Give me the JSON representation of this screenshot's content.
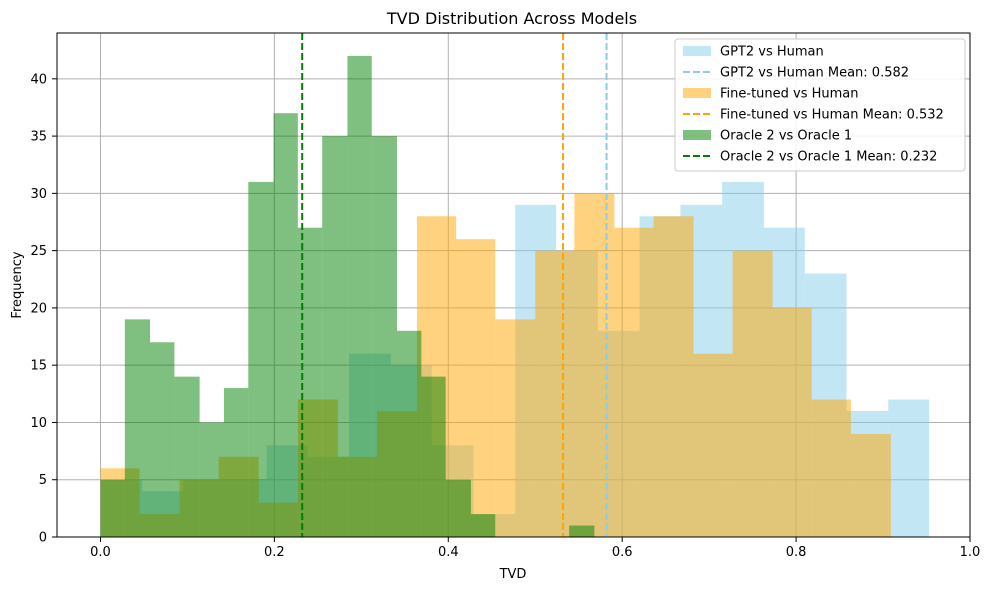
{
  "chart_data": {
    "type": "histogram",
    "title": "TVD Distribution Across Models",
    "xlabel": "TVD",
    "ylabel": "Frequency",
    "xlim": [
      -0.05,
      1.0
    ],
    "ylim": [
      0,
      44
    ],
    "xticks": [
      0.0,
      0.2,
      0.4,
      0.6,
      0.8,
      1.0
    ],
    "xtick_labels": [
      "0.0",
      "0.2",
      "0.4",
      "0.6",
      "0.8",
      "1.0"
    ],
    "yticks": [
      0,
      5,
      10,
      15,
      20,
      25,
      30,
      35,
      40
    ],
    "ytick_labels": [
      "0",
      "5",
      "10",
      "15",
      "20",
      "25",
      "30",
      "35",
      "40"
    ],
    "grid": true,
    "legend_position": "top-right",
    "series": [
      {
        "name": "GPT2 vs Human",
        "color": "#87ceeb",
        "opacity": 0.5,
        "bins": [
          {
            "x0": 0.0,
            "x1": 0.048,
            "count": 5
          },
          {
            "x0": 0.048,
            "x1": 0.095,
            "count": 4
          },
          {
            "x0": 0.095,
            "x1": 0.143,
            "count": 5
          },
          {
            "x0": 0.143,
            "x1": 0.191,
            "count": 5
          },
          {
            "x0": 0.191,
            "x1": 0.238,
            "count": 8
          },
          {
            "x0": 0.238,
            "x1": 0.286,
            "count": 7
          },
          {
            "x0": 0.286,
            "x1": 0.334,
            "count": 16
          },
          {
            "x0": 0.334,
            "x1": 0.381,
            "count": 15
          },
          {
            "x0": 0.381,
            "x1": 0.429,
            "count": 8
          },
          {
            "x0": 0.429,
            "x1": 0.477,
            "count": 2
          },
          {
            "x0": 0.477,
            "x1": 0.524,
            "count": 29
          },
          {
            "x0": 0.524,
            "x1": 0.572,
            "count": 25
          },
          {
            "x0": 0.572,
            "x1": 0.62,
            "count": 18
          },
          {
            "x0": 0.62,
            "x1": 0.667,
            "count": 28
          },
          {
            "x0": 0.667,
            "x1": 0.715,
            "count": 29
          },
          {
            "x0": 0.715,
            "x1": 0.763,
            "count": 31
          },
          {
            "x0": 0.763,
            "x1": 0.81,
            "count": 27
          },
          {
            "x0": 0.81,
            "x1": 0.858,
            "count": 23
          },
          {
            "x0": 0.858,
            "x1": 0.906,
            "count": 11
          },
          {
            "x0": 0.906,
            "x1": 0.953,
            "count": 12
          }
        ],
        "mean": 0.582,
        "mean_label": "GPT2 vs Human Mean: 0.582",
        "mean_color": "#87ceeb"
      },
      {
        "name": "Fine-tuned vs Human",
        "color": "#ffa500",
        "opacity": 0.5,
        "bins": [
          {
            "x0": 0.0,
            "x1": 0.045,
            "count": 6
          },
          {
            "x0": 0.045,
            "x1": 0.091,
            "count": 2
          },
          {
            "x0": 0.091,
            "x1": 0.136,
            "count": 5
          },
          {
            "x0": 0.136,
            "x1": 0.182,
            "count": 7
          },
          {
            "x0": 0.182,
            "x1": 0.227,
            "count": 3
          },
          {
            "x0": 0.227,
            "x1": 0.273,
            "count": 12
          },
          {
            "x0": 0.273,
            "x1": 0.318,
            "count": 7
          },
          {
            "x0": 0.318,
            "x1": 0.364,
            "count": 11
          },
          {
            "x0": 0.364,
            "x1": 0.409,
            "count": 28
          },
          {
            "x0": 0.409,
            "x1": 0.454,
            "count": 26
          },
          {
            "x0": 0.454,
            "x1": 0.5,
            "count": 19
          },
          {
            "x0": 0.5,
            "x1": 0.545,
            "count": 25
          },
          {
            "x0": 0.545,
            "x1": 0.591,
            "count": 30
          },
          {
            "x0": 0.591,
            "x1": 0.636,
            "count": 27
          },
          {
            "x0": 0.636,
            "x1": 0.682,
            "count": 28
          },
          {
            "x0": 0.682,
            "x1": 0.727,
            "count": 16
          },
          {
            "x0": 0.727,
            "x1": 0.773,
            "count": 25
          },
          {
            "x0": 0.773,
            "x1": 0.818,
            "count": 20
          },
          {
            "x0": 0.818,
            "x1": 0.863,
            "count": 12
          },
          {
            "x0": 0.863,
            "x1": 0.909,
            "count": 9
          }
        ],
        "mean": 0.532,
        "mean_label": "Fine-tuned vs Human Mean: 0.532",
        "mean_color": "#ffa500"
      },
      {
        "name": "Oracle 2 vs Oracle 1",
        "color": "#008000",
        "opacity": 0.5,
        "bins": [
          {
            "x0": 0.0,
            "x1": 0.028,
            "count": 5
          },
          {
            "x0": 0.028,
            "x1": 0.057,
            "count": 19
          },
          {
            "x0": 0.057,
            "x1": 0.085,
            "count": 17
          },
          {
            "x0": 0.085,
            "x1": 0.114,
            "count": 14
          },
          {
            "x0": 0.114,
            "x1": 0.142,
            "count": 10
          },
          {
            "x0": 0.142,
            "x1": 0.17,
            "count": 13
          },
          {
            "x0": 0.17,
            "x1": 0.199,
            "count": 31
          },
          {
            "x0": 0.199,
            "x1": 0.227,
            "count": 37
          },
          {
            "x0": 0.227,
            "x1": 0.255,
            "count": 27
          },
          {
            "x0": 0.255,
            "x1": 0.284,
            "count": 35
          },
          {
            "x0": 0.284,
            "x1": 0.312,
            "count": 42
          },
          {
            "x0": 0.312,
            "x1": 0.341,
            "count": 35
          },
          {
            "x0": 0.341,
            "x1": 0.369,
            "count": 18
          },
          {
            "x0": 0.369,
            "x1": 0.397,
            "count": 14
          },
          {
            "x0": 0.397,
            "x1": 0.426,
            "count": 5
          },
          {
            "x0": 0.426,
            "x1": 0.454,
            "count": 2
          },
          {
            "x0": 0.454,
            "x1": 0.483,
            "count": 0
          },
          {
            "x0": 0.483,
            "x1": 0.511,
            "count": 0
          },
          {
            "x0": 0.511,
            "x1": 0.539,
            "count": 0
          },
          {
            "x0": 0.539,
            "x1": 0.568,
            "count": 1
          }
        ],
        "mean": 0.232,
        "mean_label": "Oracle 2 vs Oracle 1 Mean: 0.232",
        "mean_color": "#008000"
      }
    ]
  }
}
